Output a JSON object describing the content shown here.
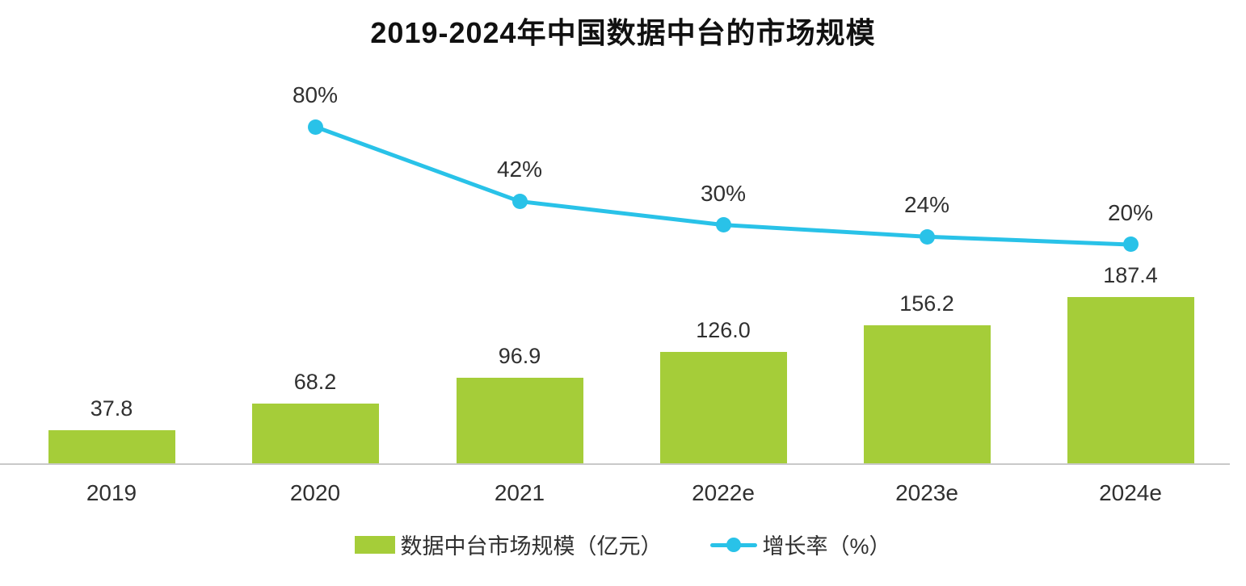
{
  "title": "2019-2024年中国数据中台的市场规模",
  "chart_data": {
    "type": "bar+line",
    "title": "2019-2024年中国数据中台的市场规模",
    "categories": [
      "2019",
      "2020",
      "2021",
      "2022e",
      "2023e",
      "2024e"
    ],
    "series": [
      {
        "name": "数据中台市场规模（亿元）",
        "type": "bar",
        "values": [
          37.8,
          68.2,
          96.9,
          126.0,
          156.2,
          187.4
        ],
        "color": "#a5cd39"
      },
      {
        "name": "增长率（%）",
        "type": "line",
        "values": [
          null,
          80,
          42,
          30,
          24,
          20
        ],
        "unit": "%",
        "color": "#29c2e8"
      }
    ],
    "xlabel": "",
    "ylabel": "",
    "grid": false,
    "legend_position": "bottom"
  },
  "legend": {
    "bar_label": "数据中台市场规模（亿元）",
    "line_label": "增长率（%）"
  },
  "colors": {
    "bar": "#a5cd39",
    "line": "#29c2e8",
    "text": "#303030",
    "axis": "#c9c9c9"
  }
}
